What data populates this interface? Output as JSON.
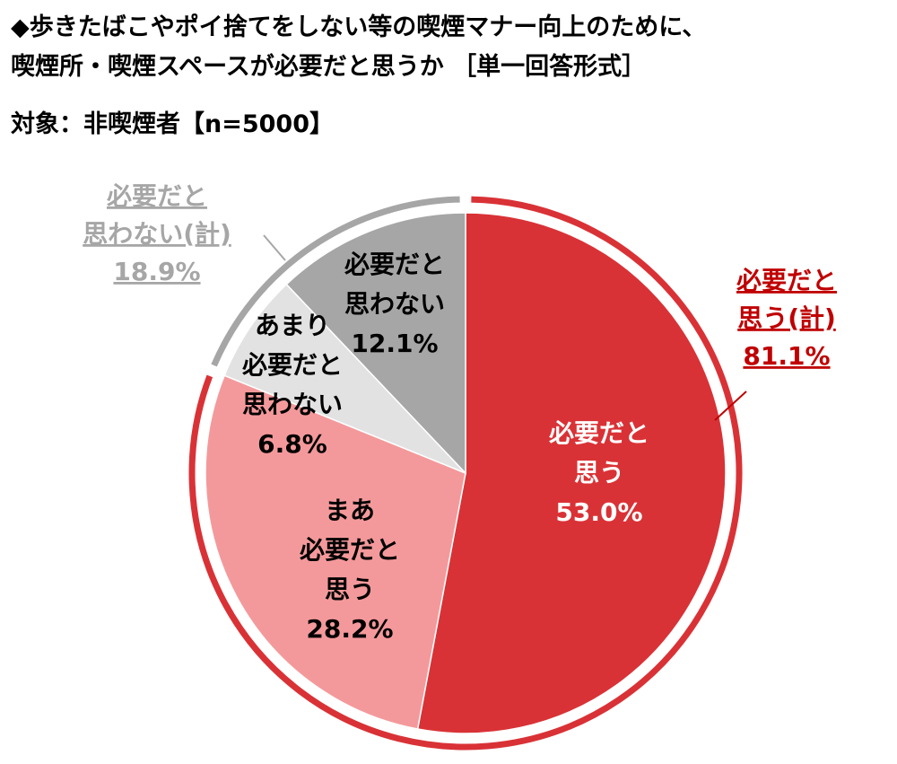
{
  "header": {
    "title_line1": "◆歩きたばこやポイ捨てをしない等の喫煙マナー向上のために、",
    "title_line2": "喫煙所・喫煙スペースが必要だと思うか ［単一回答形式］",
    "subject": "対象：非喫煙者【n=5000】"
  },
  "chart_data": {
    "type": "pie",
    "slices": [
      {
        "label_lines": [
          "必要だと",
          "思う"
        ],
        "value": 53.0,
        "value_text": "53.0%",
        "color": "#d93236",
        "text_color": "#ffffff"
      },
      {
        "label_lines": [
          "まあ",
          "必要だと",
          "思う"
        ],
        "value": 28.2,
        "value_text": "28.2%",
        "color": "#f4999b",
        "text_color": "#000000"
      },
      {
        "label_lines": [
          "あまり",
          "必要だと",
          "思わない"
        ],
        "value": 6.8,
        "value_text": "6.8%",
        "color": "#e2e2e2",
        "text_color": "#000000"
      },
      {
        "label_lines": [
          "必要だと",
          "思わない"
        ],
        "value": 12.1,
        "value_text": "12.1%",
        "color": "#a6a6a6",
        "text_color": "#000000"
      }
    ],
    "groups": [
      {
        "label_lines": [
          "必要だと",
          "思う(計)"
        ],
        "value": 81.1,
        "value_text": "81.1%",
        "color": "#c00000"
      },
      {
        "label_lines": [
          "必要だと",
          "思わない(計)"
        ],
        "value": 18.9,
        "value_text": "18.9%",
        "color": "#a6a6a6"
      }
    ]
  }
}
